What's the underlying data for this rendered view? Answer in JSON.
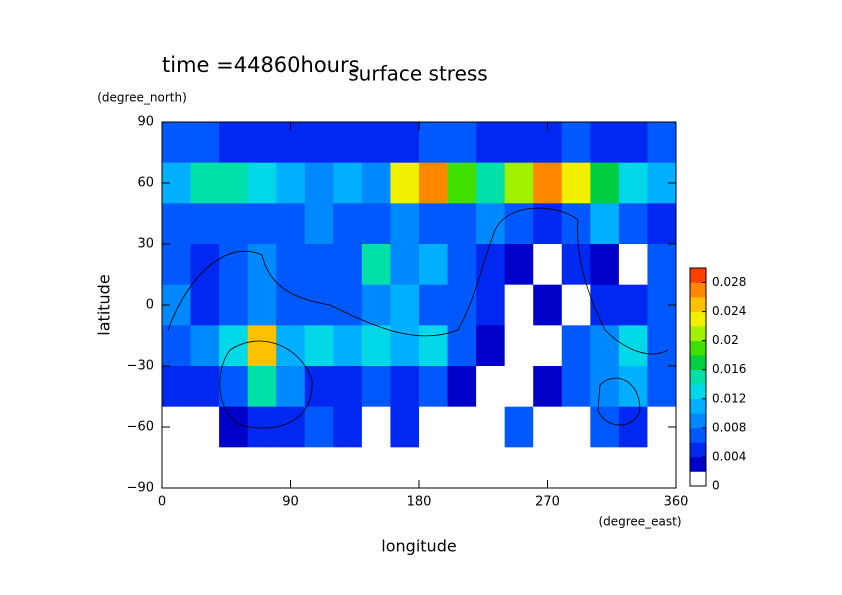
{
  "chart_data": {
    "type": "heatmap",
    "title": "surface stress",
    "subtitle": "time =44860hours",
    "xlabel": "longitude",
    "xunit": "(degree_east)",
    "ylabel": "latitude",
    "yunit": "(degree_north)",
    "x": [
      10,
      30,
      50,
      70,
      90,
      110,
      130,
      150,
      170,
      190,
      210,
      230,
      250,
      270,
      290,
      310,
      330,
      350
    ],
    "y": [
      80,
      60,
      40,
      20,
      0,
      -20,
      -40,
      -60,
      -80
    ],
    "z": [
      [
        0.006,
        0.006,
        0.005,
        0.005,
        0.004,
        0.004,
        0.005,
        0.005,
        0.005,
        0.006,
        0.006,
        0.005,
        0.005,
        0.005,
        0.006,
        0.005,
        0.005,
        0.006
      ],
      [
        0.01,
        0.014,
        0.014,
        0.012,
        0.01,
        0.009,
        0.01,
        0.009,
        0.022,
        0.026,
        0.018,
        0.014,
        0.02,
        0.026,
        0.022,
        0.016,
        0.012,
        0.01
      ],
      [
        0.006,
        0.006,
        0.007,
        0.006,
        0.006,
        0.008,
        0.006,
        0.007,
        0.008,
        0.006,
        0.007,
        0.008,
        0.006,
        0.004,
        0.006,
        0.01,
        0.006,
        0.004
      ],
      [
        0.006,
        0.004,
        0.006,
        0.008,
        0.006,
        0.006,
        0.006,
        0.014,
        0.008,
        0.01,
        0.006,
        0.004,
        0.002,
        0,
        0.004,
        0.002,
        0,
        0.006
      ],
      [
        0.008,
        0.004,
        0.006,
        0.008,
        0.006,
        0.006,
        0.006,
        0.008,
        0.01,
        0.006,
        0.006,
        0.004,
        0,
        0.002,
        0,
        0.004,
        0.004,
        0.006
      ],
      [
        0.006,
        0.008,
        0.012,
        0.024,
        0.01,
        0.012,
        0.01,
        0.012,
        0.01,
        0.012,
        0.006,
        0.002,
        0,
        0,
        0.006,
        0.008,
        0.012,
        0.006
      ],
      [
        0.004,
        0.004,
        0.006,
        0.014,
        0.008,
        0.004,
        0.004,
        0.006,
        0.004,
        0.006,
        0.002,
        0,
        0,
        0.002,
        0.006,
        0.008,
        0.01,
        0.006
      ],
      [
        0,
        0,
        0.002,
        0.004,
        0.004,
        0.006,
        0.004,
        0,
        0.004,
        0,
        0,
        0,
        0.006,
        0,
        0,
        0.006,
        0.004,
        0
      ],
      [
        0,
        0,
        0,
        0,
        0,
        0,
        0,
        0,
        0,
        0,
        0,
        0,
        0,
        0,
        0,
        0,
        0,
        0
      ]
    ],
    "xlim": [
      0,
      360
    ],
    "xticks": [
      0,
      90,
      180,
      270,
      360
    ],
    "ylim": [
      -90,
      90
    ],
    "yticks": [
      {
        "value": -90,
        "label": "−90"
      },
      {
        "value": -60,
        "label": "−60"
      },
      {
        "value": -30,
        "label": "−30"
      },
      0,
      30,
      60,
      90
    ],
    "clim": [
      0,
      0.03
    ],
    "cticks": [
      0,
      0.004,
      0.008,
      0.012,
      0.016,
      0.02,
      0.024,
      0.028
    ],
    "colors": [
      "#ffffff",
      "#0000c8",
      "#0028f0",
      "#0058ff",
      "#0088ff",
      "#00b0ff",
      "#00d8e8",
      "#00e0a8",
      "#00d040",
      "#40e000",
      "#a0f000",
      "#f0f000",
      "#ffc000",
      "#ff8800",
      "#ff4000"
    ]
  }
}
